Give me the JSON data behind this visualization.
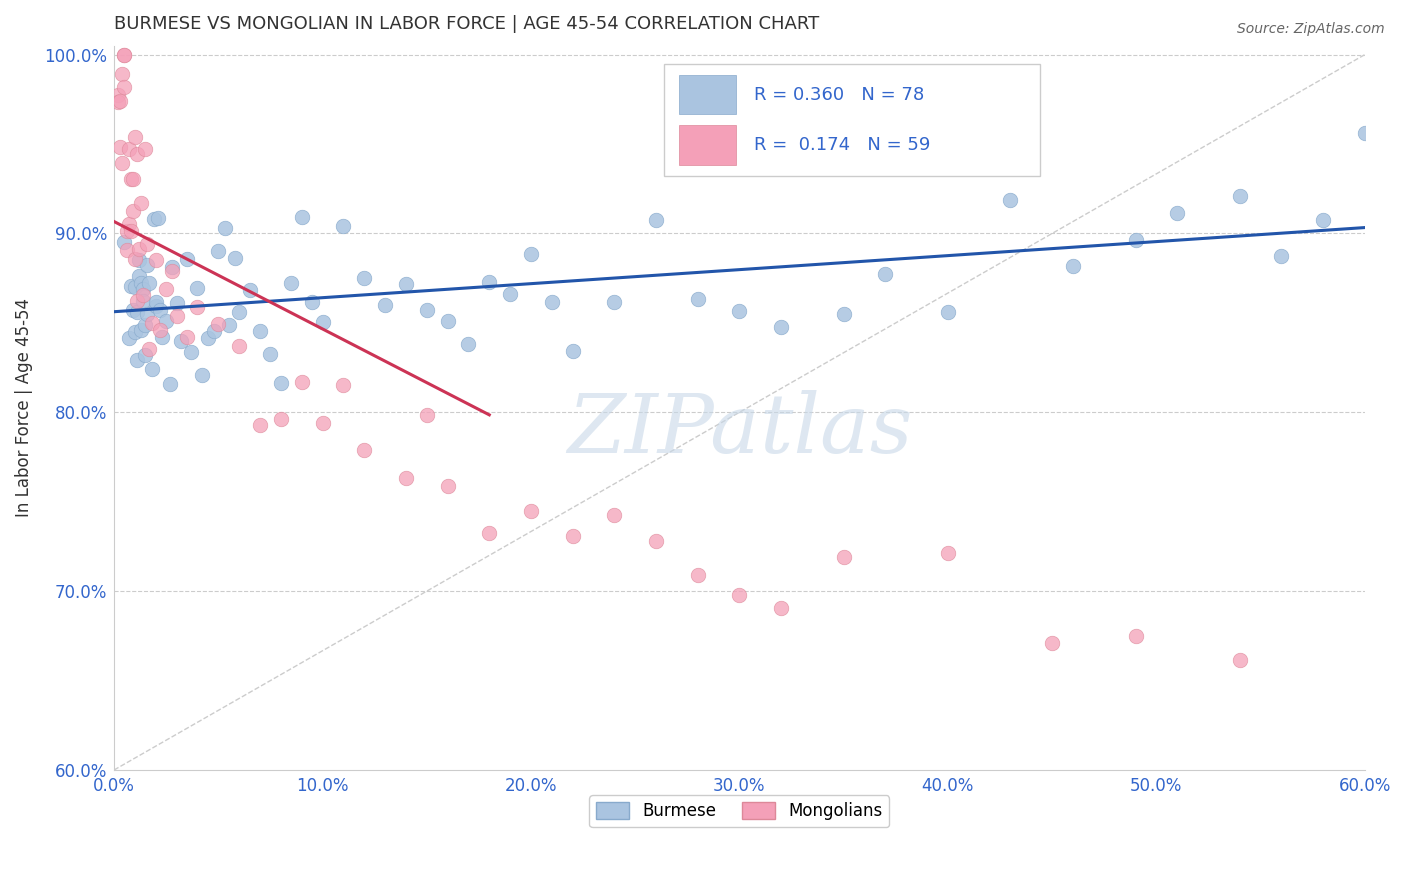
{
  "title": "BURMESE VS MONGOLIAN IN LABOR FORCE | AGE 45-54 CORRELATION CHART",
  "source_text": "Source: ZipAtlas.com",
  "ylabel": "In Labor Force | Age 45-54",
  "xlim": [
    0.0,
    0.6
  ],
  "ylim": [
    0.6,
    1.005
  ],
  "xtick_vals": [
    0.0,
    0.1,
    0.2,
    0.3,
    0.4,
    0.5,
    0.6
  ],
  "ytick_vals": [
    0.6,
    0.7,
    0.8,
    0.9,
    1.0
  ],
  "xtick_labels": [
    "0.0%",
    "10.0%",
    "20.0%",
    "30.0%",
    "40.0%",
    "50.0%",
    "60.0%"
  ],
  "ytick_labels": [
    "60.0%",
    "70.0%",
    "80.0%",
    "90.0%",
    "100.0%"
  ],
  "blue_color": "#aac4e0",
  "pink_color": "#f4a0b8",
  "blue_line_color": "#2255aa",
  "pink_line_color": "#cc3355",
  "R_blue": 0.36,
  "N_blue": 78,
  "R_pink": 0.174,
  "N_pink": 59,
  "legend_label_blue": "Burmese",
  "legend_label_pink": "Mongolians",
  "watermark": "ZIPatlas",
  "title_color": "#333333",
  "tick_color": "#3366cc",
  "ylabel_color": "#333333",
  "source_color": "#666666",
  "grid_color": "#cccccc",
  "diag_color": "#cccccc",
  "watermark_color": "#c8d8e8"
}
